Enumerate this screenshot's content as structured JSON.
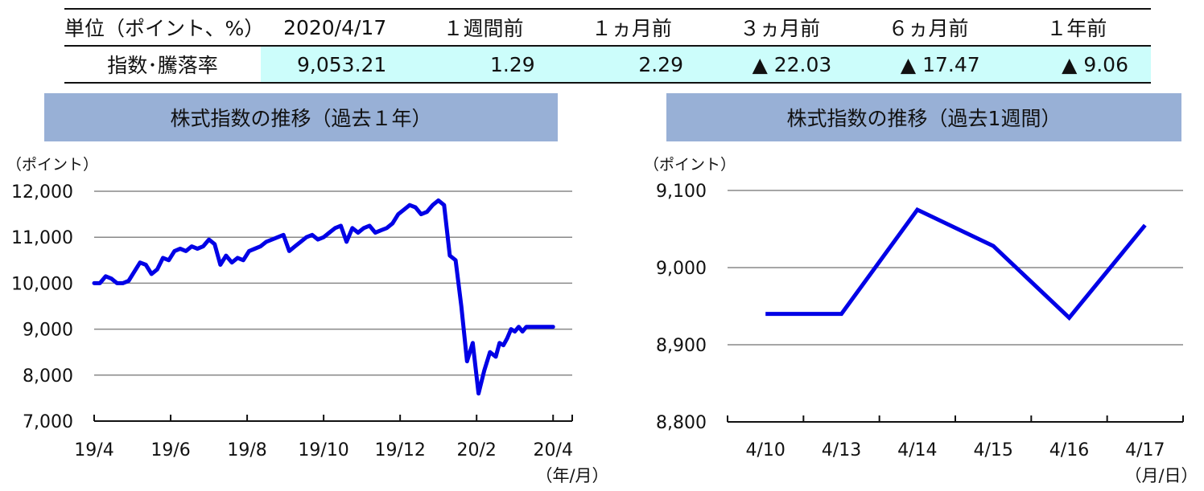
{
  "summary_table": {
    "header_label": "単位（ポイント、%）",
    "row_label": "指数･騰落率",
    "columns": [
      "2020/4/17",
      "１週間前",
      "１ヵ月前",
      "３ヵ月前",
      "６ヵ月前",
      "１年前"
    ],
    "values": [
      "9,053.21",
      "1.29",
      "2.29",
      "▲ 22.03",
      "▲ 17.47",
      "▲ 9.06"
    ]
  },
  "colors": {
    "line": "#0000e6",
    "title_bg": "#98b0d6",
    "value_bg": "#ccfdfb",
    "grid": "#888888"
  },
  "chart_data": [
    {
      "type": "line",
      "title": "株式指数の推移（過去１年）",
      "y_unit": "（ポイント）",
      "x_unit": "（年/月）",
      "ylim": [
        7000,
        12000
      ],
      "yticks": [
        7000,
        8000,
        9000,
        10000,
        11000,
        12000
      ],
      "ytick_labels": [
        "7,000",
        "8,000",
        "9,000",
        "10,000",
        "11,000",
        "12,000"
      ],
      "xlim": [
        0,
        12.5
      ],
      "xticks": [
        0,
        2,
        4,
        6,
        8,
        10,
        12
      ],
      "xtick_labels": [
        "19/4",
        "19/6",
        "19/8",
        "19/10",
        "19/12",
        "20/2",
        "20/4"
      ],
      "grid": true,
      "series": [
        {
          "x": [
            0,
            0.15,
            0.3,
            0.45,
            0.6,
            0.75,
            0.9,
            1.05,
            1.2,
            1.35,
            1.5,
            1.65,
            1.8,
            1.95,
            2.1,
            2.25,
            2.4,
            2.55,
            2.7,
            2.85,
            3.0,
            3.15,
            3.3,
            3.45,
            3.6,
            3.75,
            3.9,
            4.05,
            4.2,
            4.35,
            4.5,
            4.65,
            4.8,
            4.95,
            5.1,
            5.25,
            5.4,
            5.55,
            5.7,
            5.85,
            6.0,
            6.15,
            6.3,
            6.45,
            6.6,
            6.75,
            6.9,
            7.05,
            7.2,
            7.35,
            7.5,
            7.65,
            7.8,
            7.95,
            8.1,
            8.25,
            8.4,
            8.55,
            8.7,
            8.85,
            9.0,
            9.15,
            9.3,
            9.45,
            9.6,
            9.75,
            9.9,
            10.05,
            10.2,
            10.35,
            10.5,
            10.6,
            10.7,
            10.8,
            10.9,
            11.0,
            11.1,
            11.2,
            11.3,
            11.4,
            11.5,
            11.6,
            11.7,
            11.8,
            11.9,
            12.0
          ],
          "values": [
            10000,
            10000,
            10150,
            10100,
            10000,
            10000,
            10050,
            10250,
            10450,
            10400,
            10200,
            10300,
            10550,
            10500,
            10700,
            10750,
            10700,
            10800,
            10750,
            10800,
            10950,
            10850,
            10400,
            10600,
            10450,
            10550,
            10500,
            10700,
            10750,
            10800,
            10900,
            10950,
            11000,
            11050,
            10700,
            10800,
            10900,
            11000,
            11050,
            10950,
            11000,
            11100,
            11200,
            11250,
            10900,
            11200,
            11100,
            11200,
            11250,
            11100,
            11150,
            11200,
            11300,
            11500,
            11600,
            11700,
            11650,
            11500,
            11550,
            11700,
            11800,
            11700,
            10600,
            10500,
            9500,
            8300,
            8700,
            7600,
            8100,
            8500,
            8400,
            8700,
            8650,
            8800,
            9000,
            8950,
            9050,
            8950,
            9050,
            9050,
            9050,
            9050,
            9050,
            9050,
            9050,
            9050
          ]
        }
      ]
    },
    {
      "type": "line",
      "title": "株式指数の推移（過去1週間）",
      "y_unit": "（ポイント）",
      "x_unit": "（月/日）",
      "ylim": [
        8800,
        9100
      ],
      "yticks": [
        8800,
        8900,
        9000,
        9100
      ],
      "ytick_labels": [
        "8,800",
        "8,900",
        "9,000",
        "9,100"
      ],
      "categories": [
        "4/10",
        "4/13",
        "4/14",
        "4/15",
        "4/16",
        "4/17"
      ],
      "grid": true,
      "series": [
        {
          "values": [
            8940,
            8940,
            9075,
            9028,
            8935,
            9055
          ]
        }
      ]
    }
  ]
}
